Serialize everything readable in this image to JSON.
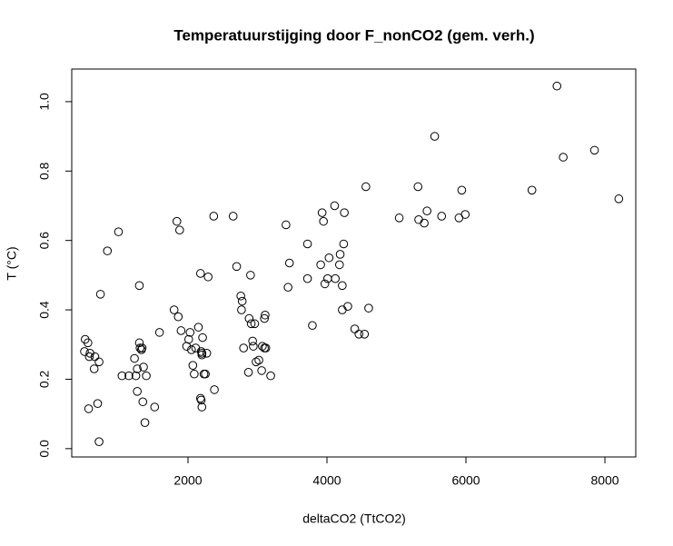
{
  "chart_data": {
    "type": "scatter",
    "title": "Temperatuurstijging door F_nonCO2 (gem. verh.)",
    "x_label": "deltaCO2 (TtCO2)",
    "y_label": "T (°C)",
    "color": "#000000",
    "xlim": [
      327,
      8444
    ],
    "ylim": [
      -0.024,
      1.094
    ],
    "xticks": [
      2000,
      4000,
      6000,
      8000
    ],
    "yticks": [
      {
        "value": 0,
        "label": "0.0"
      },
      0.2,
      0.4,
      0.6,
      0.8,
      {
        "value": 1,
        "label": "1.0"
      }
    ],
    "x": [
      520,
      560,
      510,
      590,
      580,
      660,
      720,
      650,
      570,
      700,
      720,
      740,
      840,
      1000,
      1050,
      1150,
      1230,
      1250,
      1270,
      1270,
      1300,
      1310,
      1330,
      1340,
      1350,
      1360,
      1400,
      1380,
      1300,
      1520,
      1590,
      1800,
      1860,
      1840,
      1880,
      1900,
      1980,
      2010,
      2030,
      2050,
      2070,
      2090,
      2110,
      2150,
      2180,
      2190,
      2200,
      2200,
      2180,
      2190,
      2200,
      2210,
      2230,
      2250,
      2270,
      2290,
      2370,
      2380,
      2650,
      2700,
      2760,
      2780,
      2770,
      2800,
      2870,
      2880,
      2900,
      2910,
      2930,
      2940,
      2960,
      2980,
      3020,
      3060,
      3070,
      3100,
      3110,
      3100,
      3120,
      3190,
      3410,
      3440,
      3460,
      3720,
      3720,
      3790,
      3910,
      3930,
      3950,
      3970,
      4010,
      4030,
      4110,
      4120,
      4180,
      4190,
      4220,
      4220,
      4240,
      4250,
      4300,
      4400,
      4460,
      4540,
      4560,
      4600,
      5040,
      5310,
      5320,
      5400,
      5440,
      5550,
      5650,
      5900,
      5940,
      5990,
      6950,
      7310,
      7400,
      7850,
      8200
    ],
    "values": [
      0.315,
      0.305,
      0.28,
      0.275,
      0.265,
      0.265,
      0.25,
      0.23,
      0.115,
      0.13,
      0.02,
      0.445,
      0.57,
      0.625,
      0.21,
      0.21,
      0.26,
      0.21,
      0.165,
      0.23,
      0.305,
      0.29,
      0.285,
      0.29,
      0.135,
      0.235,
      0.21,
      0.075,
      0.47,
      0.12,
      0.335,
      0.4,
      0.38,
      0.655,
      0.63,
      0.34,
      0.295,
      0.315,
      0.335,
      0.285,
      0.24,
      0.215,
      0.29,
      0.35,
      0.505,
      0.28,
      0.275,
      0.27,
      0.145,
      0.14,
      0.12,
      0.32,
      0.215,
      0.215,
      0.275,
      0.495,
      0.67,
      0.17,
      0.67,
      0.525,
      0.44,
      0.425,
      0.4,
      0.29,
      0.22,
      0.375,
      0.5,
      0.36,
      0.31,
      0.295,
      0.36,
      0.25,
      0.255,
      0.225,
      0.295,
      0.29,
      0.385,
      0.375,
      0.29,
      0.21,
      0.645,
      0.465,
      0.535,
      0.59,
      0.49,
      0.355,
      0.53,
      0.68,
      0.655,
      0.475,
      0.49,
      0.55,
      0.7,
      0.49,
      0.53,
      0.56,
      0.4,
      0.47,
      0.59,
      0.68,
      0.41,
      0.345,
      0.33,
      0.33,
      0.755,
      0.405,
      0.665,
      0.755,
      0.66,
      0.65,
      0.685,
      0.9,
      0.67,
      0.665,
      0.745,
      0.675,
      0.745,
      1.045,
      0.84,
      0.86,
      0.72
    ]
  }
}
